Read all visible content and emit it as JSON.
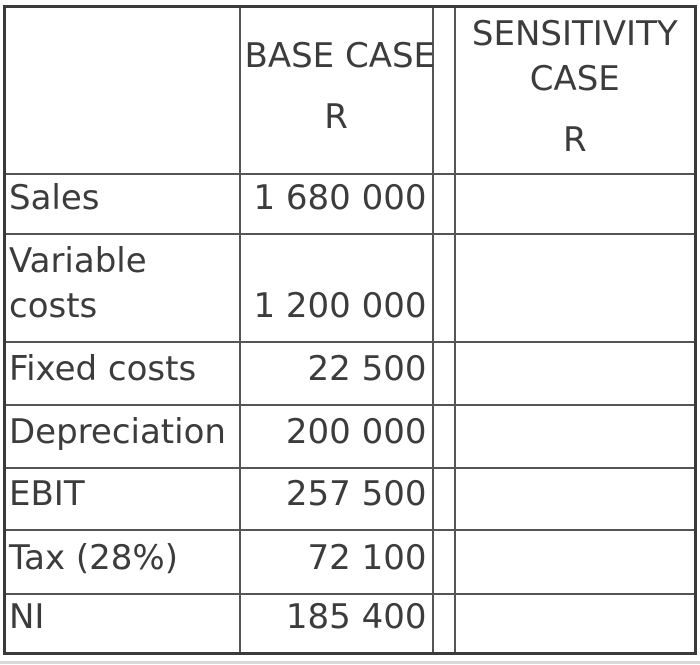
{
  "header": {
    "empty_label": "",
    "base_case": {
      "title": "BASE CASE",
      "currency": "R"
    },
    "sensitivity_case": {
      "title": "SENSITIVITY CASE",
      "currency": "R"
    }
  },
  "rows": [
    {
      "label": "Sales",
      "base": "1 680 000",
      "sensitivity": ""
    },
    {
      "label": "Variable costs",
      "base": "1 200 000",
      "sensitivity": ""
    },
    {
      "label": "Fixed costs",
      "base": "22 500",
      "sensitivity": ""
    },
    {
      "label": "Depreciation",
      "base": "200 000",
      "sensitivity": ""
    },
    {
      "label": "EBIT",
      "base": "257 500",
      "sensitivity": ""
    },
    {
      "label": "Tax (28%)",
      "base": "72 100",
      "sensitivity": ""
    },
    {
      "label": "NI",
      "base": "185 400",
      "sensitivity": ""
    }
  ],
  "colors": {
    "text": "#3c3c3c",
    "grid_line": "#555555",
    "outer_border": "#3a3a3a",
    "background": "#ffffff",
    "footer_strip": "#d9d9d9"
  }
}
